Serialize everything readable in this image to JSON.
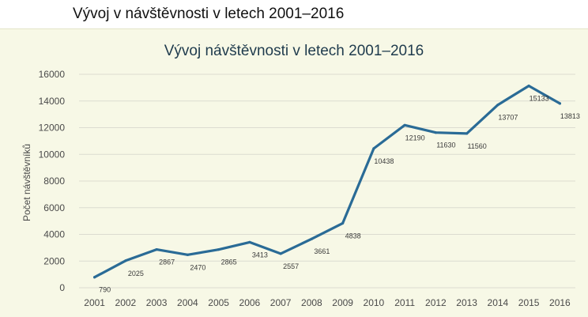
{
  "page": {
    "heading": "Vývoj v návštěvnosti v letech 2001–2016"
  },
  "chart_data": {
    "type": "line",
    "title": "Vývoj návštěvnosti v letech 2001–2016",
    "xlabel": "",
    "ylabel": "Počet návštěvníků",
    "ylim": [
      0,
      16000
    ],
    "yticks": [
      0,
      2000,
      4000,
      6000,
      8000,
      10000,
      12000,
      14000,
      16000
    ],
    "grid": true,
    "legend": "none",
    "line_color": "#2a6b96",
    "categories": [
      "2001",
      "2002",
      "2003",
      "2004",
      "2005",
      "2006",
      "2007",
      "2008",
      "2009",
      "2010",
      "2011",
      "2012",
      "2013",
      "2014",
      "2015",
      "2016"
    ],
    "series": [
      {
        "values": [
          790,
          2025,
          2867,
          2470,
          2865,
          3413,
          2557,
          3661,
          4838,
          10438,
          12190,
          11630,
          11560,
          13707,
          15133,
          13813
        ],
        "labels": [
          "790",
          "2025",
          "2867",
          "2470",
          "2865",
          "3413",
          "2557",
          "3661",
          "4838",
          "10438",
          "12190",
          "11630",
          "11560",
          "13707",
          "15133",
          "13813"
        ]
      }
    ]
  }
}
